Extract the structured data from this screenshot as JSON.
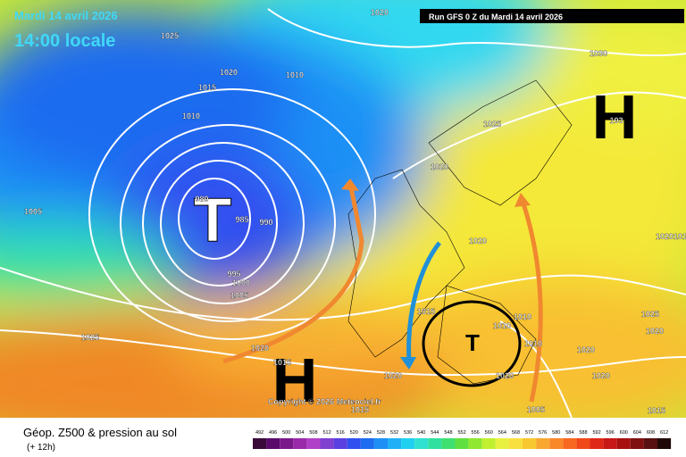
{
  "header": {
    "date": "Mardi 14 avril 2026",
    "time": "14:00 locale",
    "run": "Run GFS 0 Z du Mardi 14 avril 2026"
  },
  "footer": {
    "title": "Géop. Z500 & pression au sol",
    "lead": "(+ 12h)",
    "copyright": "Copyright © 2026 Meteociel.fr"
  },
  "centers": [
    "T",
    "H",
    "H",
    "T"
  ],
  "isobar_labels": [
    "1020",
    "1025",
    "1020",
    "1010",
    "1015",
    "1010",
    "1030",
    "1025",
    "1020",
    "1005",
    "980",
    "985",
    "990",
    "1020",
    "1020",
    "1015",
    "995",
    "1000",
    "1005",
    "1015",
    "1010",
    "1010",
    "1025",
    "1020",
    "1025",
    "1010",
    "1020",
    "1020",
    "1015",
    "1020",
    "1020",
    "1020",
    "1005",
    "1015",
    "1015",
    "103"
  ],
  "scale": {
    "labels": [
      492,
      496,
      500,
      504,
      508,
      512,
      516,
      520,
      524,
      528,
      532,
      536,
      540,
      544,
      548,
      552,
      556,
      560,
      564,
      568,
      572,
      576,
      580,
      584,
      588,
      592,
      596,
      600,
      604,
      608,
      612
    ],
    "colors": [
      "#3a0a3a",
      "#5a0a6a",
      "#7a1a8a",
      "#9a2aaa",
      "#b040c8",
      "#8040d0",
      "#5a40e0",
      "#3050f0",
      "#1e6cf0",
      "#1e90f5",
      "#20b0f5",
      "#20d0f0",
      "#30e0d0",
      "#30e0a0",
      "#40e070",
      "#60e040",
      "#90e830",
      "#c0f030",
      "#e8f040",
      "#f8e040",
      "#f8c830",
      "#f8a830",
      "#f88828",
      "#f86820",
      "#f04818",
      "#e02818",
      "#c81818",
      "#a81010",
      "#801010",
      "#581010",
      "#200808"
    ]
  }
}
